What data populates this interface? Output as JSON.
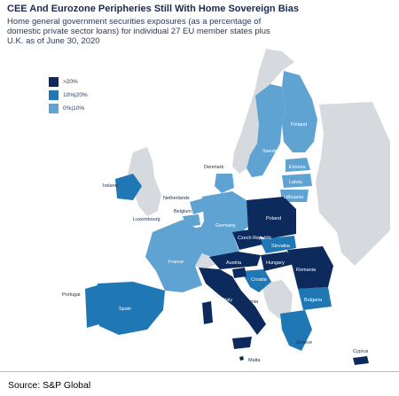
{
  "title": "CEE And Eurozone Peripheries Still With Home Sovereign Bias",
  "subtitle": "Home general government securities exposures (as a percentage of domestic private sector loans) for individual 27 EU member states plus U.K. as of June 30, 2020",
  "legend": [
    {
      "label": ">20%",
      "color": "#0d2a5c"
    },
    {
      "label": "10%|20%",
      "color": "#1f77b4"
    },
    {
      "label": "0%|10%",
      "color": "#5fa3d3"
    }
  ],
  "colors": {
    "dark": "#0d2a5c",
    "mid": "#1f77b4",
    "light": "#5fa3d3",
    "nodata": "#d6d9dd",
    "label_on_dark": "#ffffff",
    "label_on_light": "#1a2a4f"
  },
  "countries": {
    "finland": "Finland",
    "sweden": "Sweden",
    "estonia": "Estonia",
    "latvia": "Latvia",
    "lithuania": "Lithuania",
    "denmark": "Denmark",
    "ireland": "Ireland",
    "netherlands": "Netherlands",
    "belgium": "Belgium",
    "luxembourg": "Luxembourg",
    "germany": "Germany",
    "poland": "Poland",
    "czech": "Czech Republic",
    "slovakia": "Slovakia",
    "austria": "Austria",
    "hungary": "Hungary",
    "romania": "Romania",
    "france": "France",
    "portugal": "Portugal",
    "spain": "Spain",
    "italy": "Italy",
    "slovenia": "Slovenia",
    "croatia": "Croatia",
    "bulgaria": "Bulgaria",
    "greece": "Greece",
    "malta": "Malta",
    "cyprus": "Cyprus"
  },
  "source": "Source: S&P Global"
}
